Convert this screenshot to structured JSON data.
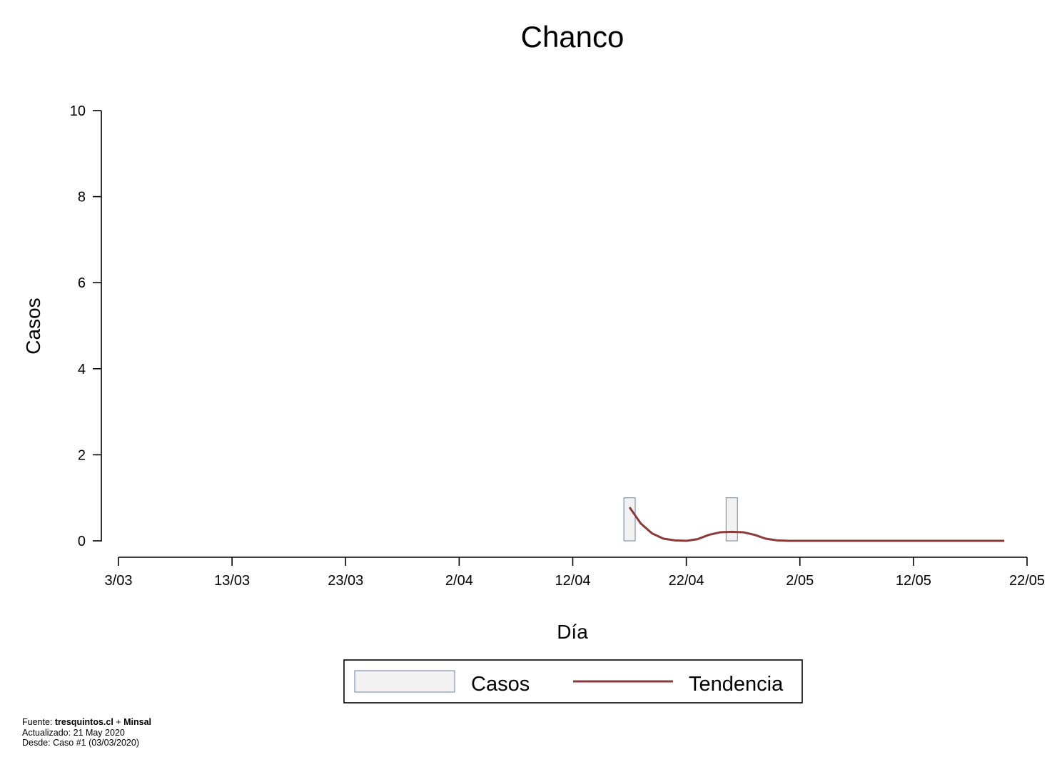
{
  "chart_data": {
    "type": "bar",
    "title": "Chanco",
    "xlabel": "Día",
    "ylabel": "Casos",
    "ylim": [
      0,
      10
    ],
    "yticks": [
      0,
      2,
      4,
      6,
      8,
      10
    ],
    "xlim": [
      "2020-03-03",
      "2020-05-22"
    ],
    "xticks": [
      {
        "date": "2020-03-03",
        "label": "3/03"
      },
      {
        "date": "2020-03-13",
        "label": "13/03"
      },
      {
        "date": "2020-03-23",
        "label": "23/03"
      },
      {
        "date": "2020-04-02",
        "label": "2/04"
      },
      {
        "date": "2020-04-12",
        "label": "12/04"
      },
      {
        "date": "2020-04-22",
        "label": "22/04"
      },
      {
        "date": "2020-05-02",
        "label": "2/05"
      },
      {
        "date": "2020-05-12",
        "label": "12/05"
      },
      {
        "date": "2020-05-22",
        "label": "22/05"
      }
    ],
    "series": [
      {
        "name": "Casos",
        "kind": "bar",
        "color": "#f2f2f2",
        "edge_color": "#6b7fa6",
        "points": [
          {
            "date": "2020-04-17",
            "value": 1
          },
          {
            "date": "2020-04-26",
            "value": 1
          }
        ]
      },
      {
        "name": "Tendencia",
        "kind": "line",
        "color": "#8b3a3a",
        "points": [
          {
            "date": "2020-04-17",
            "value": 0.78
          },
          {
            "date": "2020-04-18",
            "value": 0.4
          },
          {
            "date": "2020-04-19",
            "value": 0.17
          },
          {
            "date": "2020-04-20",
            "value": 0.05
          },
          {
            "date": "2020-04-21",
            "value": 0.01
          },
          {
            "date": "2020-04-22",
            "value": 0.0
          },
          {
            "date": "2020-04-23",
            "value": 0.04
          },
          {
            "date": "2020-04-24",
            "value": 0.14
          },
          {
            "date": "2020-04-25",
            "value": 0.2
          },
          {
            "date": "2020-04-26",
            "value": 0.21
          },
          {
            "date": "2020-04-27",
            "value": 0.2
          },
          {
            "date": "2020-04-28",
            "value": 0.14
          },
          {
            "date": "2020-04-29",
            "value": 0.05
          },
          {
            "date": "2020-04-30",
            "value": 0.01
          },
          {
            "date": "2020-05-01",
            "value": 0.0
          },
          {
            "date": "2020-05-02",
            "value": 0.0
          },
          {
            "date": "2020-05-03",
            "value": 0.0
          },
          {
            "date": "2020-05-04",
            "value": 0.0
          },
          {
            "date": "2020-05-05",
            "value": 0.0
          },
          {
            "date": "2020-05-06",
            "value": 0.0
          },
          {
            "date": "2020-05-07",
            "value": 0.0
          },
          {
            "date": "2020-05-08",
            "value": 0.0
          },
          {
            "date": "2020-05-09",
            "value": 0.0
          },
          {
            "date": "2020-05-10",
            "value": 0.0
          },
          {
            "date": "2020-05-11",
            "value": 0.0
          },
          {
            "date": "2020-05-12",
            "value": 0.0
          },
          {
            "date": "2020-05-13",
            "value": 0.0
          },
          {
            "date": "2020-05-14",
            "value": 0.0
          },
          {
            "date": "2020-05-15",
            "value": 0.0
          },
          {
            "date": "2020-05-16",
            "value": 0.0
          },
          {
            "date": "2020-05-17",
            "value": 0.0
          },
          {
            "date": "2020-05-18",
            "value": 0.0
          },
          {
            "date": "2020-05-19",
            "value": 0.0
          },
          {
            "date": "2020-05-20",
            "value": 0.0
          }
        ]
      }
    ],
    "legend": {
      "placement": "bottom",
      "entries": [
        "Casos",
        "Tendencia"
      ]
    },
    "grid": false
  },
  "footer": {
    "source_prefix": "Fuente: ",
    "source_site": "tresquintos.cl",
    "source_join": " + ",
    "source_org": "Minsal",
    "updated": "Actualizado: 21 May 2020",
    "since": "Desde: Caso #1  (03/03/2020)"
  }
}
